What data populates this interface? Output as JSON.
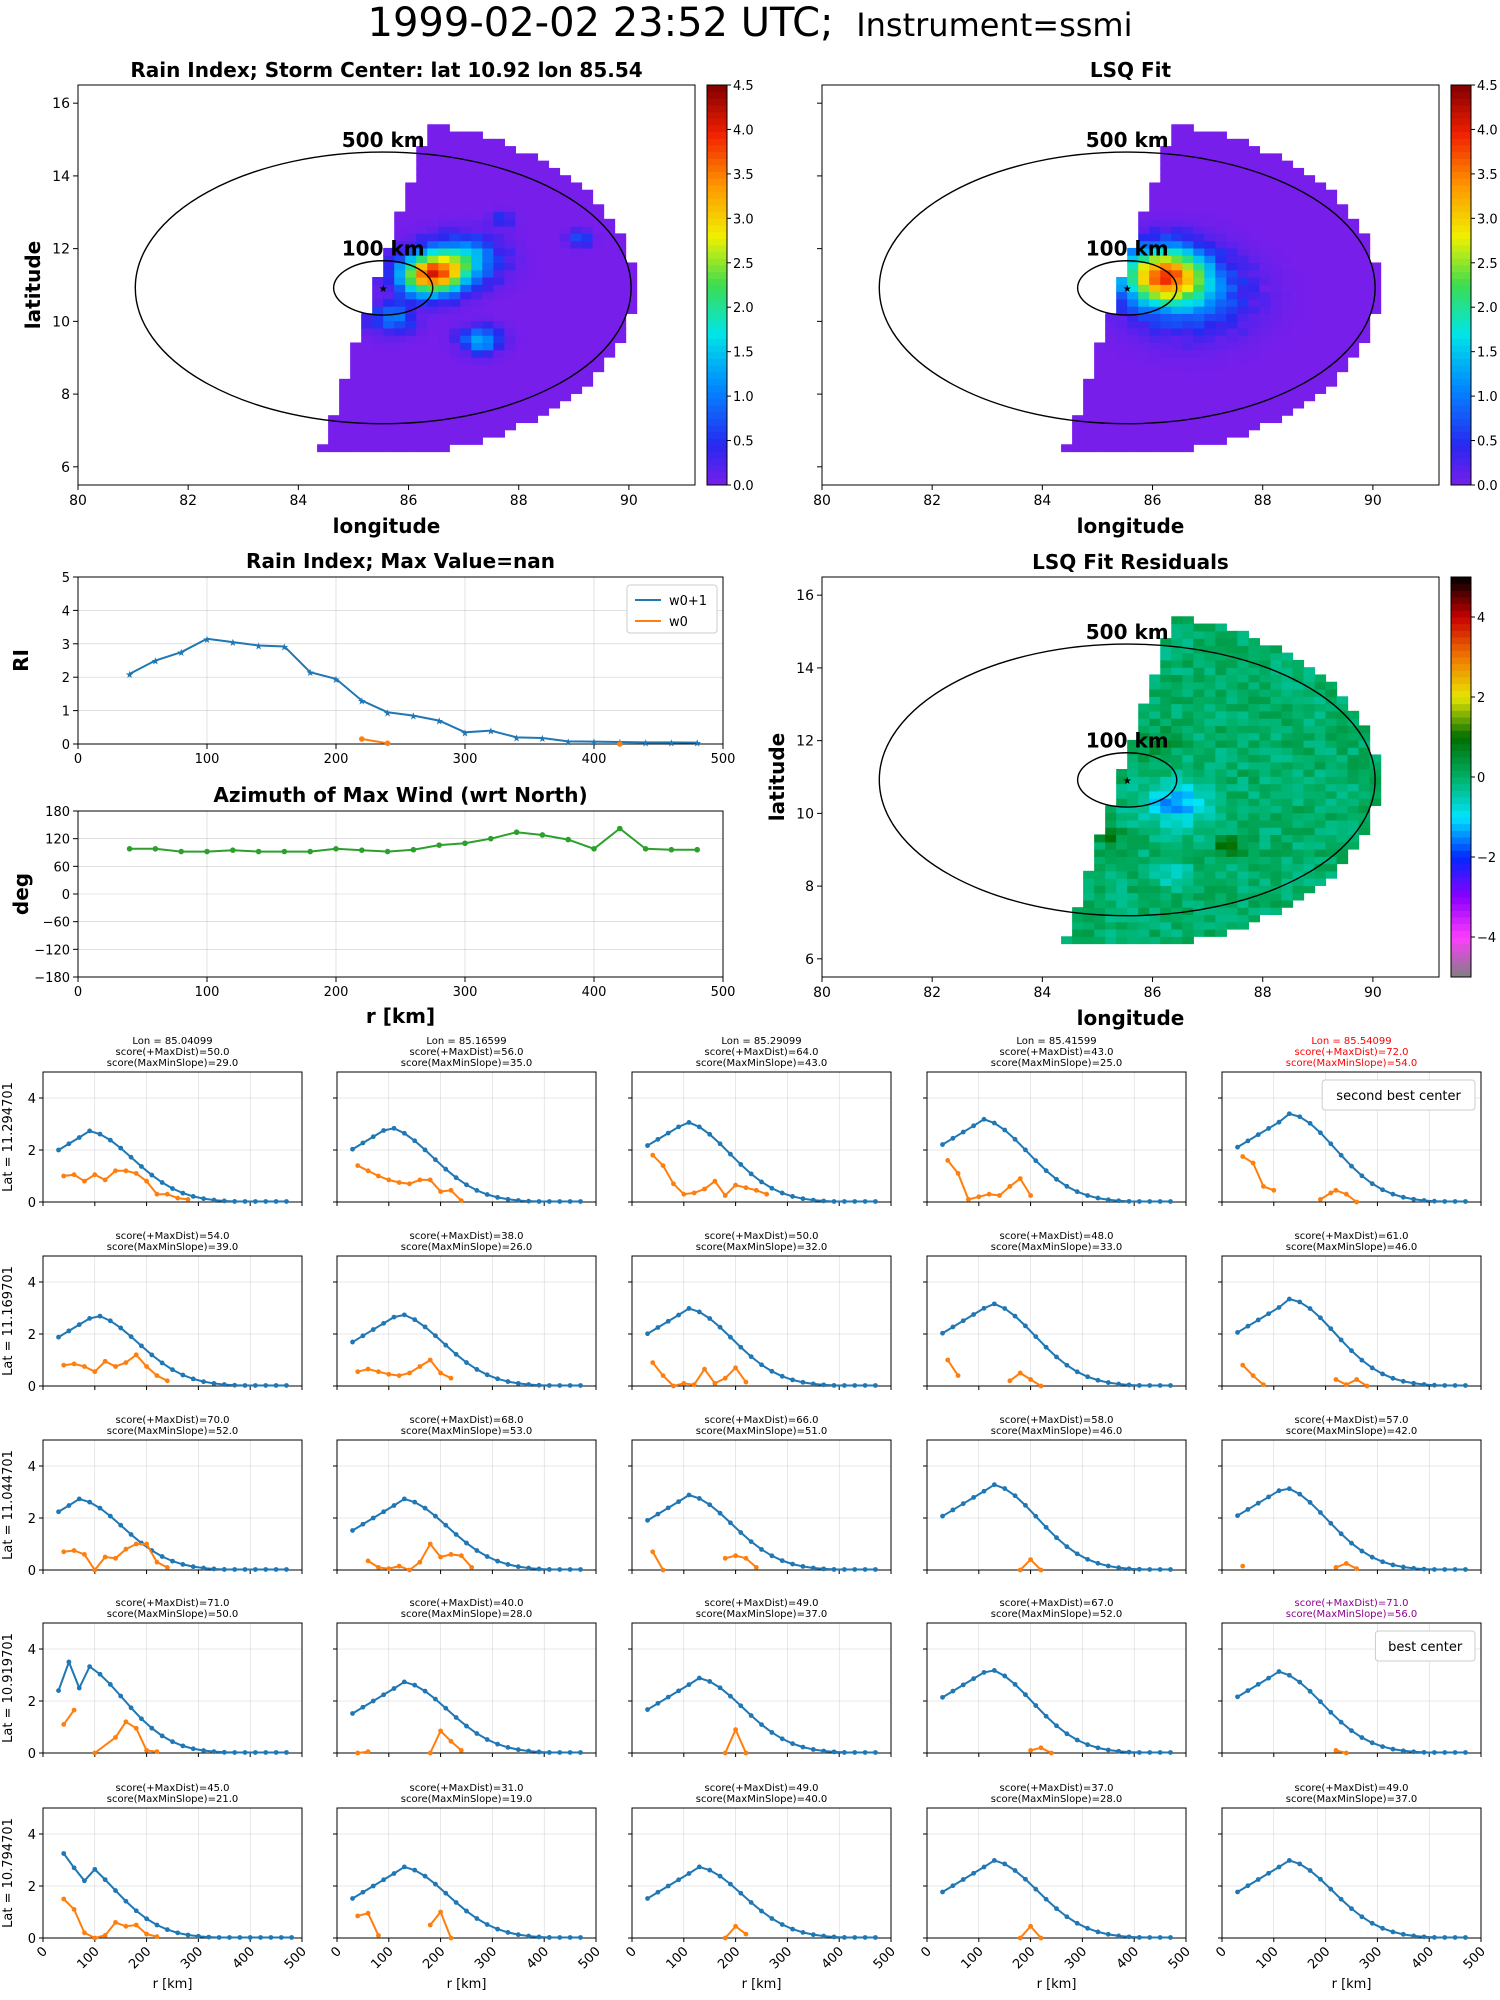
{
  "page": {
    "title_main": "1999-02-02 23:52 UTC;",
    "title_sub": "Instrument=ssmi"
  },
  "colors": {
    "series_w0p1": "#1f77b4",
    "series_w0": "#ff7f0e",
    "azimuth": "#2ca02c",
    "highlight_red": "#ff0000",
    "highlight_purple": "#8b008b",
    "grid": "#b0b0b0"
  },
  "chart_data": [
    {
      "id": "map_rain_index",
      "type": "heatmap",
      "title": "Rain Index; Storm Center: lat 10.92 lon 85.54",
      "xlabel": "longitude",
      "ylabel": "latitude",
      "xlim": [
        80,
        91.2
      ],
      "ylim": [
        5.5,
        16.5
      ],
      "xticks": [
        80,
        82,
        84,
        86,
        88,
        90
      ],
      "yticks": [
        6,
        8,
        10,
        12,
        14,
        16
      ],
      "center": {
        "lon": 85.54,
        "lat": 10.92
      },
      "rings": [
        {
          "label": "500 km",
          "radius_deg": 4.5
        },
        {
          "label": "100 km",
          "radius_deg": 0.9
        }
      ],
      "blobs": [
        {
          "lon": 86.3,
          "lat": 11.2,
          "value": 3.6,
          "spread": 0.55
        },
        {
          "lon": 86.9,
          "lat": 11.6,
          "value": 1.6,
          "spread": 0.6
        },
        {
          "lon": 87.2,
          "lat": 9.4,
          "value": 1.4,
          "spread": 0.35
        },
        {
          "lon": 85.6,
          "lat": 10.0,
          "value": 1.0,
          "spread": 0.4
        },
        {
          "lon": 89.0,
          "lat": 12.2,
          "value": 0.8,
          "spread": 0.2
        },
        {
          "lon": 87.6,
          "lat": 12.7,
          "value": 0.6,
          "spread": 0.2
        }
      ],
      "colorbar": {
        "min": 0.0,
        "max": 4.5,
        "ticks": [
          "0.0",
          "0.5",
          "1.0",
          "1.5",
          "2.0",
          "2.5",
          "3.0",
          "3.5",
          "4.0",
          "4.5"
        ],
        "cmap": "jet"
      }
    },
    {
      "id": "map_lsq_fit",
      "type": "heatmap",
      "title": "LSQ Fit",
      "xlabel": "longitude",
      "ylabel": "",
      "xlim": [
        80,
        91.2
      ],
      "ylim": [
        5.5,
        16.5
      ],
      "xticks": [
        80,
        82,
        84,
        86,
        88,
        90
      ],
      "center": {
        "lon": 85.54,
        "lat": 10.92
      },
      "rings": [
        {
          "label": "500 km",
          "radius_deg": 4.5
        },
        {
          "label": "100 km",
          "radius_deg": 0.9
        }
      ],
      "blobs": [
        {
          "lon": 86.1,
          "lat": 11.2,
          "value": 3.3,
          "spread": 0.75
        },
        {
          "lon": 86.6,
          "lat": 10.6,
          "value": 1.0,
          "spread": 1.0
        }
      ],
      "colorbar": {
        "min": 0.0,
        "max": 4.5,
        "ticks": [
          "0.0",
          "0.5",
          "1.0",
          "1.5",
          "2.0",
          "2.5",
          "3.0",
          "3.5",
          "4.0",
          "4.5"
        ],
        "cmap": "jet"
      }
    },
    {
      "id": "map_residuals",
      "type": "heatmap",
      "title": "LSQ Fit Residuals",
      "xlabel": "longitude",
      "ylabel": "latitude",
      "xlim": [
        80,
        91.2
      ],
      "ylim": [
        5.5,
        16.5
      ],
      "xticks": [
        80,
        82,
        84,
        86,
        88,
        90
      ],
      "yticks": [
        6,
        8,
        10,
        12,
        14,
        16
      ],
      "center": {
        "lon": 85.54,
        "lat": 10.92
      },
      "rings": [
        {
          "label": "500 km",
          "radius_deg": 4.5
        },
        {
          "label": "100 km",
          "radius_deg": 0.9
        }
      ],
      "blobs": [
        {
          "lon": 86.3,
          "lat": 10.2,
          "value": -1.4,
          "spread": 0.6
        },
        {
          "lon": 86.0,
          "lat": 11.8,
          "value": 0.6,
          "spread": 0.35
        },
        {
          "lon": 87.3,
          "lat": 9.0,
          "value": 1.1,
          "spread": 0.25
        },
        {
          "lon": 85.1,
          "lat": 9.3,
          "value": 0.9,
          "spread": 0.25
        },
        {
          "lon": 86.2,
          "lat": 8.3,
          "value": -0.7,
          "spread": 0.35
        }
      ],
      "colorbar": {
        "min": -5.0,
        "max": 5.0,
        "ticks": [
          "−4",
          "−2",
          "0",
          "2",
          "4"
        ],
        "tick_values": [
          -4,
          -2,
          0,
          2,
          4
        ],
        "cmap": "residual"
      }
    },
    {
      "id": "rain_index_profile",
      "type": "line",
      "title": "Rain Index; Max Value=nan",
      "ylabel": "RI",
      "xlim": [
        0,
        500
      ],
      "ylim": [
        0,
        5
      ],
      "xticks": [
        0,
        100,
        200,
        300,
        400,
        500
      ],
      "yticks": [
        0,
        1,
        2,
        3,
        4,
        5
      ],
      "legend": "top-right",
      "x": [
        40,
        60,
        80,
        100,
        120,
        140,
        160,
        180,
        200,
        220,
        240,
        260,
        280,
        300,
        320,
        340,
        360,
        380,
        400,
        420,
        440,
        460,
        480
      ],
      "series": [
        {
          "name": "w0+1",
          "marker": "star",
          "values": [
            2.1,
            2.5,
            2.75,
            3.15,
            3.05,
            2.95,
            2.92,
            2.15,
            1.95,
            1.3,
            0.95,
            0.85,
            0.7,
            0.35,
            0.4,
            0.2,
            0.18,
            0.08,
            0.07,
            0.06,
            0.05,
            0.05,
            0.04
          ]
        },
        {
          "name": "w0",
          "marker": "dot",
          "values": [
            null,
            null,
            null,
            null,
            null,
            null,
            null,
            null,
            null,
            0.15,
            0.02,
            null,
            null,
            null,
            null,
            null,
            null,
            null,
            null,
            0.0,
            null,
            null,
            null
          ]
        }
      ]
    },
    {
      "id": "azimuth_profile",
      "type": "line",
      "title": "Azimuth of Max Wind (wrt North)",
      "xlabel": "r [km]",
      "ylabel": "deg",
      "xlim": [
        0,
        500
      ],
      "ylim": [
        -180,
        180
      ],
      "xticks": [
        0,
        100,
        200,
        300,
        400,
        500
      ],
      "yticks": [
        -180,
        -120,
        -60,
        0,
        60,
        120,
        180
      ],
      "x": [
        40,
        60,
        80,
        100,
        120,
        140,
        160,
        180,
        200,
        220,
        240,
        260,
        280,
        300,
        320,
        340,
        360,
        380,
        400,
        420,
        440,
        460,
        480
      ],
      "series": [
        {
          "values": [
            98,
            98,
            92,
            92,
            95,
            92,
            92,
            92,
            98,
            95,
            92,
            96,
            106,
            110,
            120,
            134,
            128,
            118,
            98,
            142,
            98,
            96,
            96
          ]
        }
      ]
    },
    {
      "id": "score_grid",
      "type": "line",
      "xlabel": "r [km]",
      "xlim": [
        0,
        500
      ],
      "ylim": [
        0,
        5
      ],
      "xticks": [
        0,
        100,
        200,
        300,
        400,
        500
      ],
      "yticks": [
        0,
        2,
        4
      ],
      "row_labels": [
        "Lat = 11.294701",
        "Lat = 11.169701",
        "Lat = 11.044701",
        "Lat = 10.919701",
        "Lat = 10.794701"
      ],
      "col_labels": [
        "Lon = 85.04099",
        "Lon = 85.16599",
        "Lon = 85.29099",
        "Lon = 85.41599",
        "Lon = 85.54099"
      ],
      "panels": [
        {
          "row": 0,
          "col": 0,
          "maxdist": "50.0",
          "maxmin": "29.0",
          "peak_x": 80,
          "peak_y": 2.75,
          "w0": [
            1.0,
            1.05,
            0.8,
            1.05,
            0.85,
            1.2,
            1.2,
            1.1,
            0.8,
            0.3,
            0.3,
            0.15,
            0.1
          ]
        },
        {
          "row": 0,
          "col": 1,
          "maxdist": "56.0",
          "maxmin": "35.0",
          "peak_x": 90,
          "peak_y": 2.9,
          "w0": [
            1.4,
            1.2,
            1.0,
            0.85,
            0.75,
            0.7,
            0.85,
            0.85,
            0.4,
            0.45,
            0.05
          ]
        },
        {
          "row": 0,
          "col": 2,
          "maxdist": "64.0",
          "maxmin": "43.0",
          "peak_x": 95,
          "peak_y": 3.1,
          "w0": [
            1.8,
            1.4,
            0.7,
            0.3,
            0.35,
            0.5,
            0.8,
            0.25,
            0.65,
            0.55,
            0.45,
            0.3
          ]
        },
        {
          "row": 0,
          "col": 3,
          "maxdist": "43.0",
          "maxmin": "25.0",
          "peak_x": 100,
          "peak_y": 3.2,
          "w0": [
            1.6,
            1.1,
            0.1,
            0.2,
            0.3,
            0.25,
            0.6,
            0.9,
            0.25
          ]
        },
        {
          "row": 0,
          "col": 4,
          "maxdist": "72.0",
          "maxmin": "54.0",
          "peak_x": 125,
          "peak_y": 3.4,
          "w0": [
            1.75,
            1.5,
            0.6,
            0.45
          ],
          "w0_tail": [
            [
              190,
              0.1
            ],
            [
              210,
              0.35
            ],
            [
              220,
              0.45
            ],
            [
              240,
              0.3
            ],
            [
              260,
              0.0
            ]
          ],
          "highlight": "red",
          "legend": "second best center"
        },
        {
          "row": 1,
          "col": 0,
          "maxdist": "54.0",
          "maxmin": "39.0",
          "peak_x": 90,
          "peak_y": 2.75,
          "w0": [
            0.8,
            0.85,
            0.75,
            0.55,
            0.95,
            0.75,
            0.9,
            1.2,
            0.75,
            0.4,
            0.2
          ]
        },
        {
          "row": 1,
          "col": 1,
          "maxdist": "38.0",
          "maxmin": "26.0",
          "peak_x": 110,
          "peak_y": 2.8,
          "w0": [
            0.55,
            0.65,
            0.55,
            0.45,
            0.4,
            0.5,
            0.75,
            1.0,
            0.5,
            0.3
          ]
        },
        {
          "row": 1,
          "col": 2,
          "maxdist": "50.0",
          "maxmin": "32.0",
          "peak_x": 100,
          "peak_y": 3.0,
          "w0": [
            0.9,
            0.4,
            0.0,
            0.1,
            0.05,
            0.65,
            0.1,
            0.3,
            0.7,
            0.15
          ]
        },
        {
          "row": 1,
          "col": 3,
          "maxdist": "48.0",
          "maxmin": "33.0",
          "peak_x": 115,
          "peak_y": 3.2,
          "w0": [
            1.0,
            0.4
          ],
          "w0_tail": [
            [
              160,
              0.2
            ],
            [
              180,
              0.5
            ],
            [
              200,
              0.25
            ],
            [
              220,
              0.0
            ]
          ]
        },
        {
          "row": 1,
          "col": 4,
          "maxdist": "61.0",
          "maxmin": "46.0",
          "peak_x": 125,
          "peak_y": 3.35,
          "w0": [
            0.8,
            0.4,
            0.05
          ],
          "w0_tail": [
            [
              220,
              0.25
            ],
            [
              240,
              0.05
            ],
            [
              260,
              0.25
            ],
            [
              280,
              0.0
            ]
          ]
        },
        {
          "row": 2,
          "col": 0,
          "maxdist": "70.0",
          "maxmin": "52.0",
          "peak_x": 60,
          "peak_y": 2.75,
          "w0": [
            0.7,
            0.75,
            0.6,
            0.0,
            0.5,
            0.45,
            0.8,
            1.0,
            1.0,
            0.3,
            0.1
          ]
        },
        {
          "row": 2,
          "col": 1,
          "maxdist": "68.0",
          "maxmin": "53.0",
          "peak_x": 120,
          "peak_y": 2.75,
          "w0": [
            null,
            0.35,
            0.1,
            0.05,
            0.15,
            0.0,
            0.3,
            1.0,
            0.5,
            0.6,
            0.55,
            0.1
          ]
        },
        {
          "row": 2,
          "col": 2,
          "maxdist": "66.0",
          "maxmin": "51.0",
          "peak_x": 100,
          "peak_y": 2.9,
          "w0": [
            0.7,
            0.0
          ],
          "w0_tail": [
            [
              180,
              0.45
            ],
            [
              200,
              0.55
            ],
            [
              220,
              0.45
            ],
            [
              240,
              0.1
            ]
          ]
        },
        {
          "row": 2,
          "col": 3,
          "maxdist": "58.0",
          "maxmin": "46.0",
          "peak_x": 120,
          "peak_y": 3.3,
          "w0": [],
          "w0_tail": [
            [
              180,
              0.0
            ],
            [
              200,
              0.4
            ],
            [
              220,
              0.0
            ]
          ]
        },
        {
          "row": 2,
          "col": 4,
          "maxdist": "57.0",
          "maxmin": "42.0",
          "peak_x": 110,
          "peak_y": 3.2,
          "w0": [
            0.15
          ],
          "w0_tail": [
            [
              220,
              0.1
            ],
            [
              240,
              0.25
            ],
            [
              260,
              0.05
            ]
          ]
        },
        {
          "row": 3,
          "col": 0,
          "maxdist": "71.0",
          "maxmin": "50.0",
          "peak_x": 60,
          "peak_y": 3.5,
          "w0": [
            1.1,
            1.65
          ],
          "w0_tail": [
            [
              100,
              0.0
            ],
            [
              140,
              0.6
            ],
            [
              160,
              1.2
            ],
            [
              180,
              0.95
            ],
            [
              200,
              0.1
            ],
            [
              220,
              0.05
            ]
          ]
        },
        {
          "row": 3,
          "col": 1,
          "maxdist": "40.0",
          "maxmin": "28.0",
          "peak_x": 120,
          "peak_y": 2.75,
          "w0": [
            0.0,
            0.05
          ],
          "w0_tail": [
            [
              180,
              0.0
            ],
            [
              200,
              0.85
            ],
            [
              220,
              0.45
            ],
            [
              240,
              0.1
            ]
          ]
        },
        {
          "row": 3,
          "col": 2,
          "maxdist": "49.0",
          "maxmin": "37.0",
          "peak_x": 120,
          "peak_y": 2.9,
          "w0": [],
          "w0_tail": [
            [
              180,
              0.0
            ],
            [
              200,
              0.9
            ],
            [
              220,
              0.0
            ]
          ]
        },
        {
          "row": 3,
          "col": 3,
          "maxdist": "67.0",
          "maxmin": "52.0",
          "peak_x": 110,
          "peak_y": 3.25,
          "w0": [],
          "w0_tail": [
            [
              200,
              0.1
            ],
            [
              220,
              0.2
            ],
            [
              240,
              0.0
            ]
          ]
        },
        {
          "row": 3,
          "col": 4,
          "maxdist": "71.0",
          "maxmin": "56.0",
          "peak_x": 100,
          "peak_y": 3.15,
          "w0": [],
          "w0_tail": [
            [
              220,
              0.1
            ],
            [
              240,
              0.0
            ]
          ],
          "highlight": "purple",
          "legend": "best center"
        },
        {
          "row": 4,
          "col": 0,
          "maxdist": "45.0",
          "maxmin": "21.0",
          "peak_x": 40,
          "peak_y": 3.25,
          "w0": [
            1.5,
            1.1,
            0.2,
            0.0,
            0.1,
            0.6,
            0.45,
            0.5,
            0.15,
            0.05
          ]
        },
        {
          "row": 4,
          "col": 1,
          "maxdist": "31.0",
          "maxmin": "19.0",
          "peak_x": 120,
          "peak_y": 2.75,
          "w0": [
            0.85,
            0.95,
            0.1
          ],
          "w0_tail": [
            [
              180,
              0.5
            ],
            [
              200,
              1.0
            ],
            [
              220,
              0.0
            ]
          ]
        },
        {
          "row": 4,
          "col": 2,
          "maxdist": "49.0",
          "maxmin": "40.0",
          "peak_x": 120,
          "peak_y": 2.75,
          "w0": [],
          "w0_tail": [
            [
              180,
              0.0
            ],
            [
              200,
              0.45
            ],
            [
              220,
              0.15
            ]
          ]
        },
        {
          "row": 4,
          "col": 3,
          "maxdist": "37.0",
          "maxmin": "28.0",
          "peak_x": 120,
          "peak_y": 3.0,
          "w0": [],
          "w0_tail": [
            [
              180,
              0.0
            ],
            [
              200,
              0.45
            ],
            [
              220,
              0.0
            ]
          ]
        },
        {
          "row": 4,
          "col": 4,
          "maxdist": "49.0",
          "maxmin": "37.0",
          "peak_x": 120,
          "peak_y": 3.0,
          "w0": []
        }
      ]
    }
  ]
}
